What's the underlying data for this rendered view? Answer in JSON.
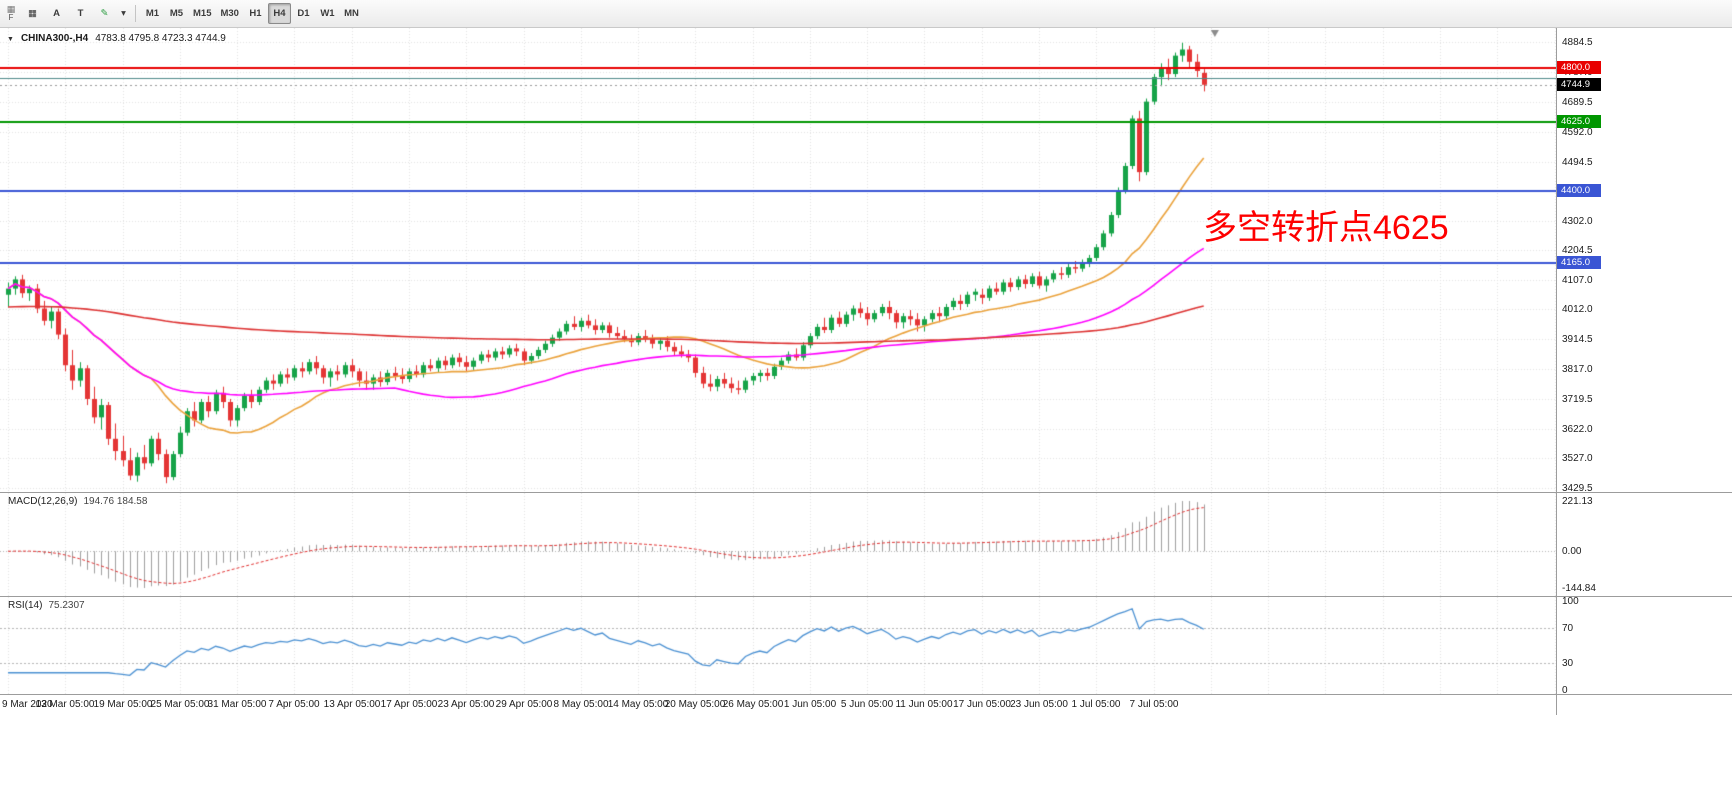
{
  "toolbar": {
    "corner_label": "F",
    "icons": [
      {
        "name": "window-grid-icon",
        "glyph": "▦"
      },
      {
        "name": "cursor-tool-button",
        "label": "A"
      },
      {
        "name": "text-tool-button",
        "label": "T"
      },
      {
        "name": "draw-tool-icon",
        "glyph": "✎"
      },
      {
        "name": "draw-tool-dropdown",
        "glyph": "▾"
      }
    ],
    "timeframes": [
      "M1",
      "M5",
      "M15",
      "M30",
      "H1",
      "H4",
      "D1",
      "W1",
      "MN"
    ],
    "active_timeframe": "H4"
  },
  "header": {
    "collapse_glyph": "▼",
    "symbol": "CHINA300-,H4",
    "ohlc": "4783.8 4795.8 4723.3 4744.9"
  },
  "annotation": {
    "text": "多空转折点4625",
    "color": "#fe0000"
  },
  "indicators": {
    "macd": {
      "label": "MACD(12,26,9)",
      "values": "194.76 184.58",
      "axis_max": "221.13",
      "axis_zero": "0.00",
      "axis_min": "-144.84",
      "fast": 12,
      "slow": 26,
      "signal": 9
    },
    "rsi": {
      "label": "RSI(14)",
      "value": "75.2307",
      "period": 14,
      "levels": [
        70,
        30
      ],
      "axis_labels": [
        "100",
        "70",
        "30",
        "0"
      ]
    }
  },
  "chart_data": {
    "type": "candlestick",
    "symbol": "CHINA300-",
    "timeframe": "H4",
    "current": {
      "open": 4783.8,
      "high": 4795.8,
      "low": 4723.3,
      "close": 4744.9
    },
    "price_axis": {
      "min": 3429.5,
      "max": 4884.5,
      "labels": [
        "4884.5",
        "4787.0",
        "4689.5",
        "4592.0",
        "4494.5",
        "4397.0",
        "4302.0",
        "4204.5",
        "4107.0",
        "4012.0",
        "3914.5",
        "3817.0",
        "3719.5",
        "3622.0",
        "3527.0",
        "3429.5"
      ]
    },
    "bars_per_label": 8,
    "time_labels": [
      "9 Mar 2020",
      "13 Mar 05:00",
      "19 Mar 05:00",
      "25 Mar 05:00",
      "31 Mar 05:00",
      "7 Apr 05:00",
      "13 Apr 05:00",
      "17 Apr 05:00",
      "23 Apr 05:00",
      "29 Apr 05:00",
      "8 May 05:00",
      "14 May 05:00",
      "20 May 05:00",
      "26 May 05:00",
      "1 Jun 05:00",
      "5 Jun 05:00",
      "11 Jun 05:00",
      "17 Jun 05:00",
      "23 Jun 05:00",
      "1 Jul 05:00",
      "7 Jul 05:00"
    ],
    "levels": [
      {
        "value": 4800.0,
        "color": "#e80000",
        "width": 2,
        "badge": "4800.0"
      },
      {
        "value": 4767.0,
        "color": "#4f8a8a",
        "width": 1
      },
      {
        "value": 4625.0,
        "color": "#009600",
        "width": 2,
        "badge": "4625.0"
      },
      {
        "value": 4400.0,
        "color": "#3a55d4",
        "width": 2,
        "badge": "4400.0"
      },
      {
        "value": 4165.0,
        "color": "#3a55d4",
        "width": 2,
        "badge": "4165.0"
      }
    ],
    "current_price_badge": {
      "value": 4744.9,
      "label": "4744.9",
      "bg": "#000000"
    },
    "moving_averages": [
      {
        "name": "ma-fast",
        "type": "sma",
        "period": 21,
        "color": "#eaa23c"
      },
      {
        "name": "ma-medium",
        "type": "sma",
        "period": 55,
        "color": "#ff00ff"
      },
      {
        "name": "ma-slow",
        "type": "ema",
        "period": 250,
        "seed": 4020,
        "color": "#dd3333"
      }
    ],
    "colors": {
      "bull": "#16a348",
      "bear": "#e43535",
      "grid": "#e2e2e2",
      "macd_hist": "#9f9f9f",
      "macd_signal": "#e03030",
      "rsi_line": "#4a90d2"
    },
    "candles": [
      [
        4060,
        4100,
        4020,
        4080
      ],
      [
        4080,
        4120,
        4060,
        4110
      ],
      [
        4110,
        4125,
        4050,
        4065
      ],
      [
        4065,
        4090,
        4040,
        4080
      ],
      [
        4080,
        4095,
        4000,
        4015
      ],
      [
        4015,
        4040,
        3960,
        3975
      ],
      [
        3975,
        4020,
        3950,
        4005
      ],
      [
        4005,
        4015,
        3915,
        3930
      ],
      [
        3930,
        3950,
        3810,
        3830
      ],
      [
        3830,
        3880,
        3750,
        3780
      ],
      [
        3780,
        3840,
        3760,
        3820
      ],
      [
        3820,
        3830,
        3700,
        3720
      ],
      [
        3720,
        3760,
        3640,
        3660
      ],
      [
        3660,
        3720,
        3620,
        3700
      ],
      [
        3700,
        3710,
        3570,
        3590
      ],
      [
        3590,
        3640,
        3520,
        3550
      ],
      [
        3550,
        3600,
        3500,
        3520
      ],
      [
        3520,
        3560,
        3455,
        3470
      ],
      [
        3470,
        3545,
        3450,
        3530
      ],
      [
        3530,
        3570,
        3490,
        3510
      ],
      [
        3510,
        3600,
        3500,
        3590
      ],
      [
        3590,
        3610,
        3520,
        3540
      ],
      [
        3540,
        3555,
        3445,
        3465
      ],
      [
        3465,
        3550,
        3455,
        3540
      ],
      [
        3540,
        3630,
        3530,
        3610
      ],
      [
        3610,
        3690,
        3600,
        3680
      ],
      [
        3680,
        3710,
        3630,
        3650
      ],
      [
        3650,
        3720,
        3640,
        3710
      ],
      [
        3710,
        3730,
        3660,
        3680
      ],
      [
        3680,
        3750,
        3670,
        3740
      ],
      [
        3740,
        3760,
        3690,
        3710
      ],
      [
        3710,
        3720,
        3630,
        3650
      ],
      [
        3650,
        3700,
        3630,
        3690
      ],
      [
        3690,
        3740,
        3680,
        3730
      ],
      [
        3730,
        3750,
        3690,
        3710
      ],
      [
        3710,
        3760,
        3700,
        3750
      ],
      [
        3750,
        3790,
        3740,
        3780
      ],
      [
        3780,
        3800,
        3750,
        3770
      ],
      [
        3770,
        3810,
        3760,
        3800
      ],
      [
        3800,
        3820,
        3770,
        3790
      ],
      [
        3790,
        3830,
        3780,
        3820
      ],
      [
        3820,
        3840,
        3790,
        3810
      ],
      [
        3810,
        3850,
        3800,
        3840
      ],
      [
        3840,
        3860,
        3800,
        3820
      ],
      [
        3820,
        3830,
        3770,
        3790
      ],
      [
        3790,
        3820,
        3760,
        3810
      ],
      [
        3810,
        3830,
        3780,
        3800
      ],
      [
        3800,
        3840,
        3790,
        3830
      ],
      [
        3830,
        3850,
        3790,
        3810
      ],
      [
        3810,
        3820,
        3760,
        3780
      ],
      [
        3780,
        3810,
        3750,
        3770
      ],
      [
        3770,
        3800,
        3750,
        3790
      ],
      [
        3790,
        3810,
        3760,
        3775
      ],
      [
        3775,
        3815,
        3765,
        3805
      ],
      [
        3805,
        3825,
        3780,
        3795
      ],
      [
        3795,
        3820,
        3770,
        3785
      ],
      [
        3785,
        3820,
        3775,
        3810
      ],
      [
        3810,
        3830,
        3790,
        3800
      ],
      [
        3800,
        3840,
        3790,
        3830
      ],
      [
        3830,
        3850,
        3810,
        3820
      ],
      [
        3820,
        3855,
        3805,
        3845
      ],
      [
        3845,
        3860,
        3815,
        3830
      ],
      [
        3830,
        3865,
        3820,
        3855
      ],
      [
        3855,
        3870,
        3825,
        3840
      ],
      [
        3840,
        3860,
        3810,
        3825
      ],
      [
        3825,
        3855,
        3815,
        3845
      ],
      [
        3845,
        3875,
        3835,
        3865
      ],
      [
        3865,
        3880,
        3840,
        3855
      ],
      [
        3855,
        3885,
        3845,
        3875
      ],
      [
        3875,
        3890,
        3850,
        3865
      ],
      [
        3865,
        3895,
        3855,
        3885
      ],
      [
        3885,
        3900,
        3860,
        3875
      ],
      [
        3875,
        3885,
        3830,
        3845
      ],
      [
        3845,
        3870,
        3835,
        3860
      ],
      [
        3860,
        3890,
        3850,
        3880
      ],
      [
        3880,
        3910,
        3870,
        3900
      ],
      [
        3900,
        3930,
        3890,
        3920
      ],
      [
        3920,
        3950,
        3910,
        3940
      ],
      [
        3940,
        3975,
        3930,
        3965
      ],
      [
        3965,
        3990,
        3945,
        3955
      ],
      [
        3955,
        3985,
        3940,
        3975
      ],
      [
        3975,
        3995,
        3950,
        3960
      ],
      [
        3960,
        3980,
        3930,
        3945
      ],
      [
        3945,
        3970,
        3935,
        3960
      ],
      [
        3960,
        3970,
        3920,
        3935
      ],
      [
        3935,
        3955,
        3915,
        3925
      ],
      [
        3925,
        3945,
        3905,
        3915
      ],
      [
        3915,
        3930,
        3890,
        3905
      ],
      [
        3905,
        3935,
        3895,
        3925
      ],
      [
        3925,
        3945,
        3905,
        3915
      ],
      [
        3915,
        3930,
        3885,
        3900
      ],
      [
        3900,
        3920,
        3880,
        3910
      ],
      [
        3910,
        3925,
        3875,
        3890
      ],
      [
        3890,
        3905,
        3860,
        3875
      ],
      [
        3875,
        3895,
        3855,
        3865
      ],
      [
        3865,
        3880,
        3840,
        3855
      ],
      [
        3855,
        3865,
        3790,
        3805
      ],
      [
        3805,
        3825,
        3755,
        3770
      ],
      [
        3770,
        3800,
        3745,
        3760
      ],
      [
        3760,
        3795,
        3745,
        3785
      ],
      [
        3785,
        3805,
        3755,
        3770
      ],
      [
        3770,
        3790,
        3740,
        3755
      ],
      [
        3755,
        3780,
        3735,
        3750
      ],
      [
        3750,
        3790,
        3740,
        3780
      ],
      [
        3780,
        3805,
        3765,
        3795
      ],
      [
        3795,
        3815,
        3775,
        3805
      ],
      [
        3805,
        3820,
        3780,
        3795
      ],
      [
        3795,
        3835,
        3785,
        3825
      ],
      [
        3825,
        3855,
        3815,
        3845
      ],
      [
        3845,
        3875,
        3835,
        3865
      ],
      [
        3865,
        3885,
        3845,
        3855
      ],
      [
        3855,
        3905,
        3845,
        3895
      ],
      [
        3895,
        3935,
        3885,
        3925
      ],
      [
        3925,
        3965,
        3915,
        3955
      ],
      [
        3955,
        3985,
        3935,
        3945
      ],
      [
        3945,
        3995,
        3935,
        3985
      ],
      [
        3985,
        4005,
        3955,
        3965
      ],
      [
        3965,
        4005,
        3955,
        3995
      ],
      [
        3995,
        4025,
        3975,
        4015
      ],
      [
        4015,
        4035,
        3985,
        4000
      ],
      [
        4000,
        4020,
        3960,
        3980
      ],
      [
        3980,
        4010,
        3970,
        4000
      ],
      [
        4000,
        4030,
        3990,
        4020
      ],
      [
        4020,
        4040,
        3980,
        4000
      ],
      [
        4000,
        4010,
        3950,
        3970
      ],
      [
        3970,
        4000,
        3950,
        3990
      ],
      [
        3990,
        4010,
        3960,
        3980
      ],
      [
        3980,
        4000,
        3940,
        3960
      ],
      [
        3960,
        3990,
        3940,
        3980
      ],
      [
        3980,
        4010,
        3970,
        4000
      ],
      [
        4000,
        4020,
        3970,
        3990
      ],
      [
        3990,
        4030,
        3980,
        4020
      ],
      [
        4020,
        4050,
        4010,
        4040
      ],
      [
        4040,
        4060,
        4010,
        4030
      ],
      [
        4030,
        4070,
        4020,
        4060
      ],
      [
        4060,
        4080,
        4040,
        4070
      ],
      [
        4060,
        4080,
        4030,
        4050
      ],
      [
        4050,
        4090,
        4040,
        4080
      ],
      [
        4080,
        4100,
        4060,
        4070
      ],
      [
        4070,
        4110,
        4060,
        4100
      ],
      [
        4100,
        4115,
        4070,
        4085
      ],
      [
        4085,
        4120,
        4075,
        4110
      ],
      [
        4110,
        4125,
        4080,
        4095
      ],
      [
        4095,
        4130,
        4085,
        4120
      ],
      [
        4120,
        4135,
        4080,
        4090
      ],
      [
        4090,
        4120,
        4070,
        4110
      ],
      [
        4110,
        4140,
        4100,
        4130
      ],
      [
        4130,
        4150,
        4110,
        4125
      ],
      [
        4125,
        4160,
        4115,
        4150
      ],
      [
        4150,
        4170,
        4130,
        4145
      ],
      [
        4145,
        4175,
        4135,
        4165
      ],
      [
        4165,
        4190,
        4150,
        4180
      ],
      [
        4180,
        4225,
        4170,
        4215
      ],
      [
        4215,
        4270,
        4205,
        4260
      ],
      [
        4260,
        4330,
        4250,
        4320
      ],
      [
        4320,
        4410,
        4310,
        4400
      ],
      [
        4400,
        4490,
        4390,
        4480
      ],
      [
        4480,
        4645,
        4470,
        4635
      ],
      [
        4635,
        4660,
        4430,
        4460
      ],
      [
        4460,
        4700,
        4450,
        4690
      ],
      [
        4690,
        4780,
        4680,
        4770
      ],
      [
        4770,
        4815,
        4740,
        4800
      ],
      [
        4800,
        4830,
        4760,
        4780
      ],
      [
        4780,
        4850,
        4770,
        4840
      ],
      [
        4840,
        4882,
        4820,
        4860
      ],
      [
        4860,
        4872,
        4800,
        4820
      ],
      [
        4820,
        4845,
        4770,
        4790
      ],
      [
        4783.8,
        4795.8,
        4723.3,
        4744.9
      ]
    ]
  }
}
